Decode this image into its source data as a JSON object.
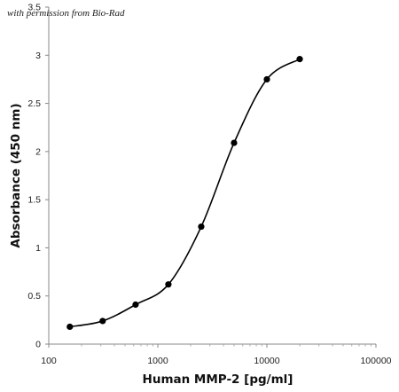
{
  "watermark": "with permission from Bio-Rad",
  "chart_data": {
    "type": "scatter",
    "title": "",
    "xlabel": "Human MMP-2 [pg/ml]",
    "ylabel": "Absorbance (450 nm)",
    "x_scale": "log",
    "xlim": [
      100,
      100000
    ],
    "ylim": [
      0,
      3.5
    ],
    "x_ticks": [
      100,
      1000,
      10000,
      100000
    ],
    "x_tick_labels": [
      "100",
      "1000",
      "10000",
      "100000"
    ],
    "y_ticks": [
      0,
      0.5,
      1,
      1.5,
      2,
      2.5,
      3,
      3.5
    ],
    "y_tick_labels": [
      "0",
      "0.5",
      "1",
      "1.5",
      "2",
      "2.5",
      "3",
      "3.5"
    ],
    "grid": false,
    "legend": "none",
    "series": [
      {
        "x": [
          156,
          312,
          625,
          1250,
          2500,
          5000,
          10000,
          20000
        ],
        "y": [
          0.18,
          0.24,
          0.41,
          0.62,
          1.22,
          2.09,
          2.75,
          2.96
        ],
        "color": "#000000",
        "marker": "circle",
        "line": "smooth"
      }
    ]
  }
}
